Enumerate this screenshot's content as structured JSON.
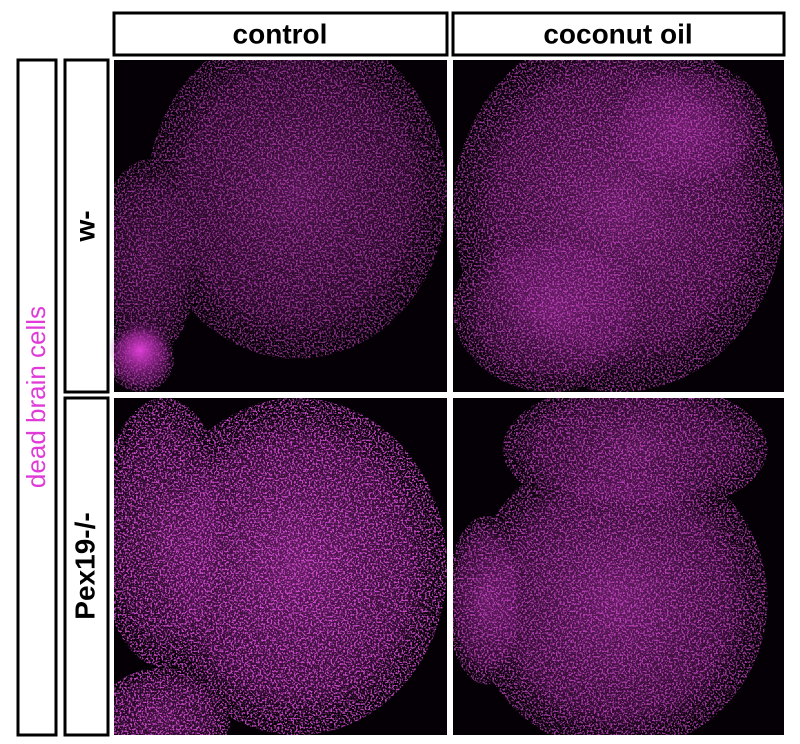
{
  "columns": [
    "control",
    "coconut oil"
  ],
  "rows": [
    "w-",
    "Pex19-/-"
  ],
  "side_label": "dead brain cells"
}
